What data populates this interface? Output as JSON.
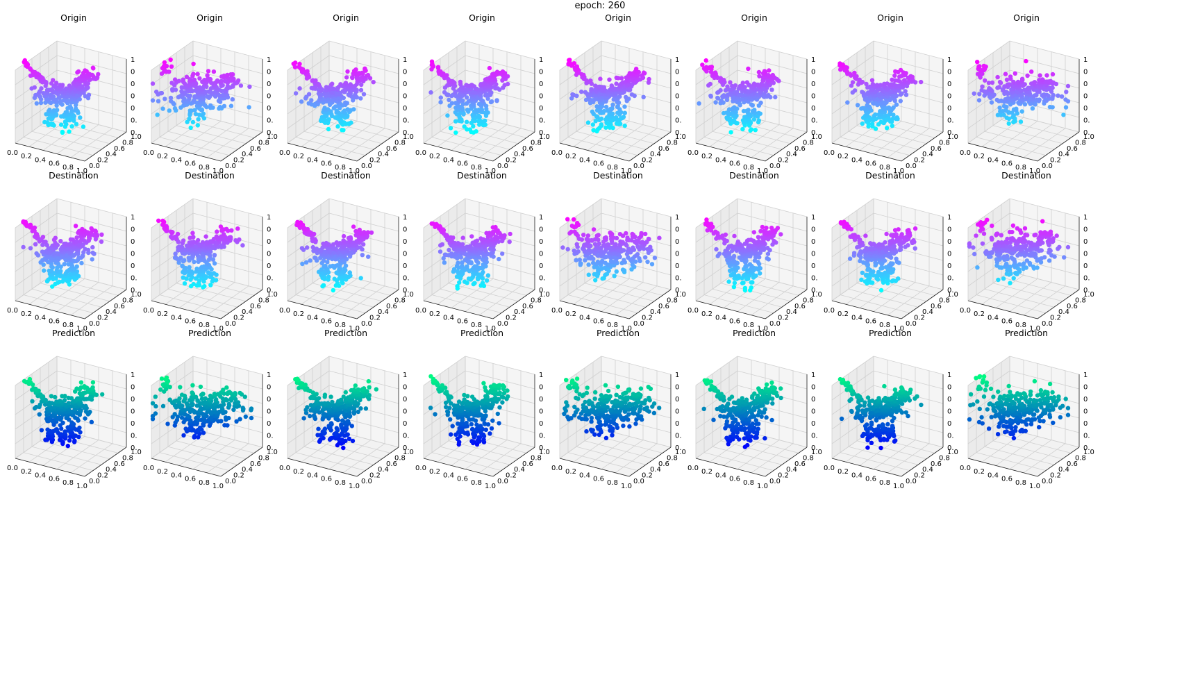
{
  "figure": {
    "suptitle": "epoch: 260"
  },
  "row_titles": [
    "Origin",
    "Destination",
    "Prediction"
  ],
  "tick_labels": {
    "x": [
      "0.0",
      "0.2",
      "0.4",
      "0.6",
      "0.8",
      "1.0"
    ],
    "y": [
      "0.0",
      "0.2",
      "0.4",
      "0.6",
      "0.8",
      "1.0"
    ],
    "z": [
      "0.",
      "0.",
      "0",
      "0",
      "0",
      "0",
      "1"
    ]
  },
  "chart_data": {
    "type": "scatter",
    "projection": "3d",
    "grid": true,
    "rows": 3,
    "columns": 8,
    "xlim": [
      0,
      1
    ],
    "ylim": [
      0,
      1
    ],
    "zlim": [
      0,
      1
    ],
    "colormaps": {
      "Origin": [
        "#00ffff",
        "#ff00ff"
      ],
      "Destination": [
        "#00ffff",
        "#ff00ff"
      ],
      "Prediction": [
        "#0000ff",
        "#00ff80"
      ]
    },
    "panels": [
      {
        "row": "Origin",
        "col": 1,
        "shape": "cat-raised-tail"
      },
      {
        "row": "Origin",
        "col": 2,
        "shape": "blob-wide"
      },
      {
        "row": "Origin",
        "col": 3,
        "shape": "cat-standing"
      },
      {
        "row": "Origin",
        "col": 4,
        "shape": "cat-standing"
      },
      {
        "row": "Origin",
        "col": 5,
        "shape": "cat-raised-tail"
      },
      {
        "row": "Origin",
        "col": 6,
        "shape": "cat-standing"
      },
      {
        "row": "Origin",
        "col": 7,
        "shape": "cat-compact"
      },
      {
        "row": "Origin",
        "col": 8,
        "shape": "blob-wide"
      },
      {
        "row": "Destination",
        "col": 1,
        "shape": "cat-standing"
      },
      {
        "row": "Destination",
        "col": 2,
        "shape": "cat-compact"
      },
      {
        "row": "Destination",
        "col": 3,
        "shape": "cat-standing"
      },
      {
        "row": "Destination",
        "col": 4,
        "shape": "cat-standing"
      },
      {
        "row": "Destination",
        "col": 5,
        "shape": "blob-wide"
      },
      {
        "row": "Destination",
        "col": 6,
        "shape": "cat-standing"
      },
      {
        "row": "Destination",
        "col": 7,
        "shape": "cat-compact"
      },
      {
        "row": "Destination",
        "col": 8,
        "shape": "blob-wide"
      },
      {
        "row": "Prediction",
        "col": 1,
        "shape": "cat-standing"
      },
      {
        "row": "Prediction",
        "col": 2,
        "shape": "blob-wide"
      },
      {
        "row": "Prediction",
        "col": 3,
        "shape": "cat-standing"
      },
      {
        "row": "Prediction",
        "col": 4,
        "shape": "cat-standing"
      },
      {
        "row": "Prediction",
        "col": 5,
        "shape": "blob-wide"
      },
      {
        "row": "Prediction",
        "col": 6,
        "shape": "cat-standing"
      },
      {
        "row": "Prediction",
        "col": 7,
        "shape": "cat-compact"
      },
      {
        "row": "Prediction",
        "col": 8,
        "shape": "blob-wide"
      }
    ]
  }
}
